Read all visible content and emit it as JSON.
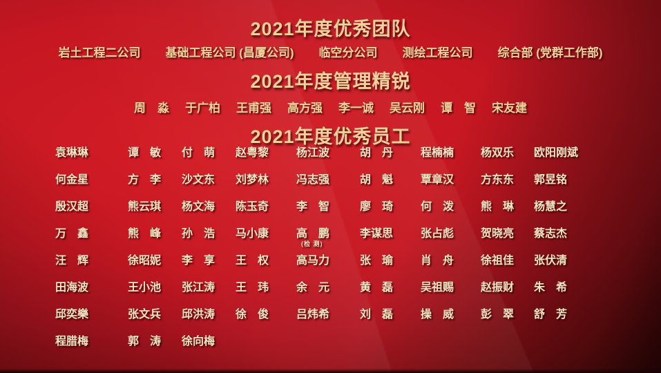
{
  "page": {
    "kind": "annual-awards-poster",
    "accent_gold": "#f2d29b",
    "name_cream": "#f6e5c2",
    "bg_bright_red": "#d41d26",
    "bg_dark_red": "#420a0b"
  },
  "teams_section": {
    "title": "2021年度优秀团队",
    "items": [
      "岩土工程二公司",
      "基础工程公司 (昌厦公司)",
      "临空分公司",
      "测绘工程公司",
      "综合部 (党群工作部)"
    ]
  },
  "elites_section": {
    "title": "2021年度管理精锐",
    "items": [
      "周　淼",
      "于广柏",
      "王甫强",
      "高方强",
      "李一诚",
      "吴云刚",
      "谭　智",
      "宋友建"
    ]
  },
  "employees_section": {
    "title": "2021年度优秀员工",
    "rows": [
      [
        "袁琳琳",
        "谭　敏",
        "付　萌",
        "赵粤黎",
        "杨江波",
        "胡　丹",
        "程楠楠",
        "杨双乐",
        "欧阳刚斌"
      ],
      [
        "何金星",
        "方　李",
        "沙文东",
        "刘梦林",
        "冯志强",
        "胡　魁",
        "覃章汉",
        "方东东",
        "郭昱铭"
      ],
      [
        "殷汉超",
        "熊云琪",
        "杨文海",
        "陈玉奇",
        "李　智",
        "廖　琦",
        "何　泼",
        "熊　琳",
        "杨慧之"
      ],
      [
        "万　鑫",
        "熊　峰",
        "孙　浩",
        "马小康",
        {
          "name": "高　鹏",
          "note": "(检 测)"
        },
        "李谋思",
        "张占彪",
        "贺晓亮",
        "蔡志杰"
      ],
      [
        "汪　辉",
        "徐昭妮",
        "李　享",
        "王　权",
        "高马力",
        "张　瑜",
        "肖　舟",
        "徐祖佳",
        "张伏清"
      ],
      [
        "田海波",
        "王小池",
        "张江涛",
        "王　玮",
        "余　元",
        "黄　磊",
        "吴祖赐",
        "赵振财",
        "朱　希"
      ],
      [
        "邱奕樂",
        "张文兵",
        "邱洪涛",
        "徐　俊",
        "吕炜希",
        "刘　磊",
        "操　威",
        "彭　翠",
        "舒　芳"
      ],
      [
        "程腊梅",
        "郭　涛",
        "徐向梅"
      ]
    ]
  }
}
